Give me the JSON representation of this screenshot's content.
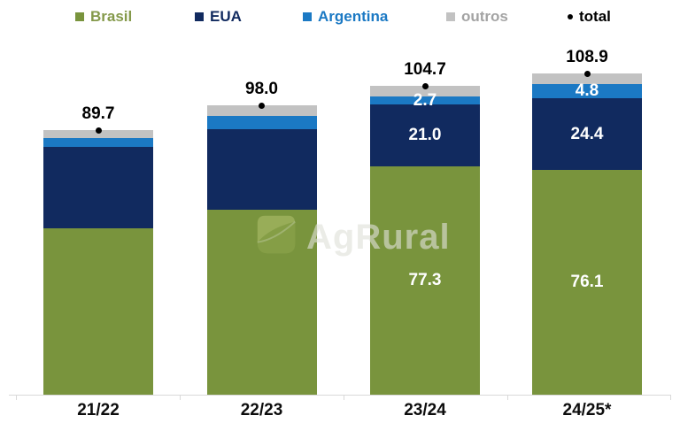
{
  "legend": {
    "items": [
      {
        "label": "Brasil",
        "marker": "square",
        "color": "#79943D",
        "text_color": "#84994A"
      },
      {
        "label": "EUA",
        "marker": "square",
        "color": "#112A5F",
        "text_color": "#112A5F"
      },
      {
        "label": "Argentina",
        "marker": "square",
        "color": "#1B79C4",
        "text_color": "#1B79C4"
      },
      {
        "label": "outros",
        "marker": "square",
        "color": "#C2C2C2",
        "text_color": "#A3A3A3"
      },
      {
        "label": "total",
        "marker": "dot",
        "color": "#000000",
        "text_color": "#000000"
      }
    ]
  },
  "watermark": {
    "text": "AgRural"
  },
  "chart_data": {
    "type": "bar",
    "stacked": true,
    "title": "",
    "xlabel": "",
    "ylabel": "",
    "ylim": [
      0,
      115
    ],
    "grid": false,
    "legend_position": "top",
    "background": "#FFFFFF",
    "axis_color": "#D9D9D9",
    "value_label_color": "#FFFFFF",
    "total_marker_color": "#000000",
    "categories": [
      "21/22",
      "22/23",
      "23/24",
      "24/25*"
    ],
    "series": [
      {
        "name": "Brasil",
        "color": "#79943D",
        "values": [
          56.4,
          62.7,
          77.3,
          76.1
        ],
        "value_labels": [
          null,
          null,
          "77.3",
          "76.1"
        ]
      },
      {
        "name": "EUA",
        "color": "#112A5F",
        "values": [
          27.6,
          27.3,
          21.0,
          24.4
        ],
        "value_labels": [
          null,
          null,
          "21.0",
          "24.4"
        ]
      },
      {
        "name": "Argentina",
        "color": "#1B79C4",
        "values": [
          3.0,
          4.5,
          2.7,
          4.8
        ],
        "value_labels": [
          null,
          null,
          "2.7",
          "4.8"
        ]
      },
      {
        "name": "outros",
        "color": "#C2C2C2",
        "values": [
          2.7,
          3.5,
          3.7,
          3.6
        ],
        "value_labels": [
          null,
          null,
          null,
          null
        ]
      }
    ],
    "totals": [
      89.7,
      98.0,
      104.7,
      108.9
    ],
    "total_labels": [
      "89.7",
      "98.0",
      "104.7",
      "108.9"
    ]
  }
}
